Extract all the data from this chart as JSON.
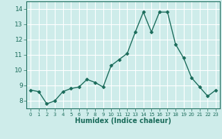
{
  "x": [
    0,
    1,
    2,
    3,
    4,
    5,
    6,
    7,
    8,
    9,
    10,
    11,
    12,
    13,
    14,
    15,
    16,
    17,
    18,
    19,
    20,
    21,
    22,
    23
  ],
  "y": [
    8.7,
    8.6,
    7.8,
    8.0,
    8.6,
    8.8,
    8.9,
    9.4,
    9.2,
    8.9,
    10.3,
    10.7,
    11.1,
    12.5,
    13.8,
    12.5,
    13.8,
    13.8,
    11.7,
    10.8,
    9.5,
    8.9,
    8.3,
    8.7
  ],
  "line_color": "#1a6b5a",
  "marker": "D",
  "marker_size": 2.5,
  "bg_color": "#ceecea",
  "grid_color": "#ffffff",
  "xlabel": "Humidex (Indice chaleur)",
  "xlim": [
    -0.5,
    23.5
  ],
  "ylim": [
    7.5,
    14.5
  ],
  "yticks": [
    8,
    9,
    10,
    11,
    12,
    13,
    14
  ],
  "xticks": [
    0,
    1,
    2,
    3,
    4,
    5,
    6,
    7,
    8,
    9,
    10,
    11,
    12,
    13,
    14,
    15,
    16,
    17,
    18,
    19,
    20,
    21,
    22,
    23
  ],
  "tick_color": "#1a6b5a",
  "spine_color": "#1a6b5a",
  "xlabel_fontsize": 7,
  "xtick_fontsize": 5,
  "ytick_fontsize": 6.5,
  "linewidth": 1.0
}
